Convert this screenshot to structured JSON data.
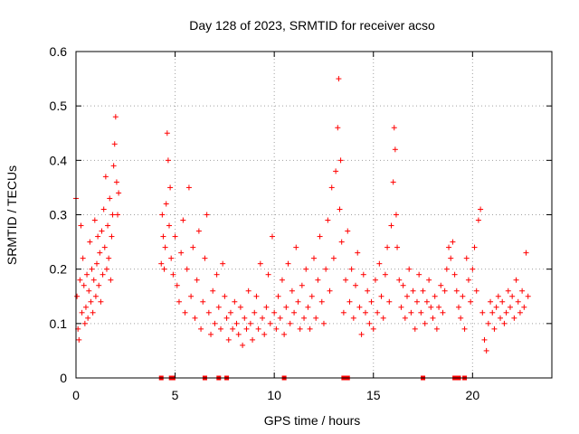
{
  "colors": {
    "marker": "#ff0000",
    "axis": "#000000",
    "grid": "#a0a0a0"
  },
  "chart_data": {
    "type": "scatter",
    "title": "Day 128 of 2023, SRMTID for receiver acso",
    "xlabel": "GPS time / hours",
    "ylabel": "SRMTID / TECUs",
    "xlim": [
      0,
      24
    ],
    "ylim": [
      0,
      0.6
    ],
    "xticks": [
      0,
      5,
      10,
      15,
      20
    ],
    "xtick_labels": [
      "0",
      "5",
      "10",
      "15",
      "20"
    ],
    "yticks": [
      0,
      0.1,
      0.2,
      0.3,
      0.4,
      0.5,
      0.6
    ],
    "ytick_labels": [
      "0",
      "0.1",
      "0.2",
      "0.3",
      "0.4",
      "0.5",
      "0.6"
    ],
    "grid": true,
    "marker": "+",
    "series": [
      {
        "name": "SRMTID",
        "points": [
          [
            0.0,
            0.33
          ],
          [
            0.05,
            0.15
          ],
          [
            0.1,
            0.09
          ],
          [
            0.15,
            0.07
          ],
          [
            0.2,
            0.18
          ],
          [
            0.25,
            0.28
          ],
          [
            0.3,
            0.12
          ],
          [
            0.35,
            0.22
          ],
          [
            0.4,
            0.17
          ],
          [
            0.45,
            0.1
          ],
          [
            0.5,
            0.13
          ],
          [
            0.55,
            0.19
          ],
          [
            0.6,
            0.11
          ],
          [
            0.65,
            0.16
          ],
          [
            0.7,
            0.25
          ],
          [
            0.75,
            0.14
          ],
          [
            0.8,
            0.2
          ],
          [
            0.85,
            0.12
          ],
          [
            0.9,
            0.18
          ],
          [
            0.95,
            0.29
          ],
          [
            1.0,
            0.15
          ],
          [
            1.05,
            0.21
          ],
          [
            1.1,
            0.26
          ],
          [
            1.15,
            0.17
          ],
          [
            1.2,
            0.23
          ],
          [
            1.25,
            0.14
          ],
          [
            1.3,
            0.27
          ],
          [
            1.35,
            0.19
          ],
          [
            1.4,
            0.31
          ],
          [
            1.45,
            0.24
          ],
          [
            1.5,
            0.37
          ],
          [
            1.55,
            0.2
          ],
          [
            1.6,
            0.28
          ],
          [
            1.65,
            0.22
          ],
          [
            1.7,
            0.33
          ],
          [
            1.75,
            0.18
          ],
          [
            1.8,
            0.26
          ],
          [
            1.85,
            0.3
          ],
          [
            1.9,
            0.39
          ],
          [
            1.95,
            0.43
          ],
          [
            2.0,
            0.48
          ],
          [
            2.05,
            0.36
          ],
          [
            2.1,
            0.3
          ],
          [
            2.15,
            0.34
          ],
          [
            4.3,
            0.21
          ],
          [
            4.35,
            0.3
          ],
          [
            4.4,
            0.26
          ],
          [
            4.45,
            0.2
          ],
          [
            4.5,
            0.24
          ],
          [
            4.55,
            0.32
          ],
          [
            4.6,
            0.45
          ],
          [
            4.65,
            0.4
          ],
          [
            4.7,
            0.28
          ],
          [
            4.75,
            0.35
          ],
          [
            4.8,
            0.22
          ],
          [
            4.9,
            0.19
          ],
          [
            5.0,
            0.26
          ],
          [
            5.1,
            0.17
          ],
          [
            5.2,
            0.14
          ],
          [
            5.3,
            0.23
          ],
          [
            5.4,
            0.29
          ],
          [
            5.5,
            0.12
          ],
          [
            5.6,
            0.2
          ],
          [
            5.7,
            0.35
          ],
          [
            5.8,
            0.15
          ],
          [
            5.9,
            0.24
          ],
          [
            6.0,
            0.11
          ],
          [
            6.1,
            0.18
          ],
          [
            6.2,
            0.27
          ],
          [
            6.3,
            0.09
          ],
          [
            6.4,
            0.14
          ],
          [
            6.5,
            0.22
          ],
          [
            6.6,
            0.3
          ],
          [
            6.7,
            0.12
          ],
          [
            6.8,
            0.08
          ],
          [
            6.9,
            0.16
          ],
          [
            7.0,
            0.1
          ],
          [
            7.1,
            0.19
          ],
          [
            7.2,
            0.13
          ],
          [
            7.3,
            0.09
          ],
          [
            7.4,
            0.21
          ],
          [
            7.5,
            0.15
          ],
          [
            7.6,
            0.11
          ],
          [
            7.7,
            0.07
          ],
          [
            7.8,
            0.12
          ],
          [
            7.9,
            0.09
          ],
          [
            8.0,
            0.14
          ],
          [
            8.1,
            0.1
          ],
          [
            8.2,
            0.08
          ],
          [
            8.3,
            0.13
          ],
          [
            8.4,
            0.06
          ],
          [
            8.5,
            0.11
          ],
          [
            8.6,
            0.09
          ],
          [
            8.7,
            0.16
          ],
          [
            8.8,
            0.1
          ],
          [
            8.9,
            0.07
          ],
          [
            9.0,
            0.12
          ],
          [
            9.1,
            0.15
          ],
          [
            9.2,
            0.09
          ],
          [
            9.3,
            0.21
          ],
          [
            9.4,
            0.11
          ],
          [
            9.5,
            0.08
          ],
          [
            9.6,
            0.13
          ],
          [
            9.7,
            0.19
          ],
          [
            9.8,
            0.1
          ],
          [
            9.9,
            0.26
          ],
          [
            10.0,
            0.12
          ],
          [
            10.1,
            0.09
          ],
          [
            10.2,
            0.15
          ],
          [
            10.3,
            0.11
          ],
          [
            10.4,
            0.18
          ],
          [
            10.5,
            0.08
          ],
          [
            10.6,
            0.13
          ],
          [
            10.7,
            0.21
          ],
          [
            10.8,
            0.1
          ],
          [
            10.9,
            0.16
          ],
          [
            11.0,
            0.12
          ],
          [
            11.1,
            0.24
          ],
          [
            11.2,
            0.14
          ],
          [
            11.3,
            0.09
          ],
          [
            11.4,
            0.17
          ],
          [
            11.5,
            0.11
          ],
          [
            11.6,
            0.2
          ],
          [
            11.7,
            0.13
          ],
          [
            11.8,
            0.09
          ],
          [
            11.9,
            0.15
          ],
          [
            12.0,
            0.22
          ],
          [
            12.1,
            0.11
          ],
          [
            12.2,
            0.18
          ],
          [
            12.3,
            0.26
          ],
          [
            12.4,
            0.14
          ],
          [
            12.5,
            0.1
          ],
          [
            12.6,
            0.2
          ],
          [
            12.7,
            0.29
          ],
          [
            12.8,
            0.16
          ],
          [
            12.9,
            0.35
          ],
          [
            13.0,
            0.22
          ],
          [
            13.1,
            0.38
          ],
          [
            13.2,
            0.46
          ],
          [
            13.25,
            0.55
          ],
          [
            13.3,
            0.31
          ],
          [
            13.35,
            0.4
          ],
          [
            13.4,
            0.25
          ],
          [
            13.5,
            0.12
          ],
          [
            13.6,
            0.18
          ],
          [
            13.7,
            0.27
          ],
          [
            13.8,
            0.14
          ],
          [
            13.9,
            0.2
          ],
          [
            14.0,
            0.11
          ],
          [
            14.1,
            0.17
          ],
          [
            14.2,
            0.23
          ],
          [
            14.3,
            0.13
          ],
          [
            14.4,
            0.08
          ],
          [
            14.5,
            0.19
          ],
          [
            14.6,
            0.12
          ],
          [
            14.7,
            0.16
          ],
          [
            14.8,
            0.1
          ],
          [
            14.9,
            0.14
          ],
          [
            15.0,
            0.09
          ],
          [
            15.1,
            0.18
          ],
          [
            15.2,
            0.12
          ],
          [
            15.3,
            0.21
          ],
          [
            15.4,
            0.15
          ],
          [
            15.5,
            0.11
          ],
          [
            15.6,
            0.19
          ],
          [
            15.7,
            0.24
          ],
          [
            15.8,
            0.14
          ],
          [
            15.9,
            0.28
          ],
          [
            16.0,
            0.36
          ],
          [
            16.05,
            0.46
          ],
          [
            16.1,
            0.42
          ],
          [
            16.15,
            0.3
          ],
          [
            16.2,
            0.24
          ],
          [
            16.3,
            0.18
          ],
          [
            16.4,
            0.13
          ],
          [
            16.5,
            0.17
          ],
          [
            16.6,
            0.11
          ],
          [
            16.7,
            0.15
          ],
          [
            16.8,
            0.2
          ],
          [
            16.9,
            0.12
          ],
          [
            17.0,
            0.16
          ],
          [
            17.1,
            0.09
          ],
          [
            17.2,
            0.14
          ],
          [
            17.3,
            0.19
          ],
          [
            17.4,
            0.12
          ],
          [
            17.5,
            0.16
          ],
          [
            17.6,
            0.1
          ],
          [
            17.7,
            0.14
          ],
          [
            17.8,
            0.18
          ],
          [
            17.9,
            0.13
          ],
          [
            18.0,
            0.11
          ],
          [
            18.1,
            0.15
          ],
          [
            18.2,
            0.09
          ],
          [
            18.3,
            0.13
          ],
          [
            18.4,
            0.17
          ],
          [
            18.5,
            0.12
          ],
          [
            18.6,
            0.16
          ],
          [
            18.7,
            0.2
          ],
          [
            18.8,
            0.24
          ],
          [
            18.9,
            0.22
          ],
          [
            19.0,
            0.25
          ],
          [
            19.1,
            0.19
          ],
          [
            19.2,
            0.16
          ],
          [
            19.3,
            0.13
          ],
          [
            19.4,
            0.11
          ],
          [
            19.5,
            0.15
          ],
          [
            19.6,
            0.09
          ],
          [
            19.7,
            0.22
          ],
          [
            19.8,
            0.18
          ],
          [
            19.9,
            0.14
          ],
          [
            20.0,
            0.2
          ],
          [
            20.1,
            0.24
          ],
          [
            20.2,
            0.16
          ],
          [
            20.3,
            0.29
          ],
          [
            20.4,
            0.31
          ],
          [
            20.5,
            0.12
          ],
          [
            20.6,
            0.07
          ],
          [
            20.7,
            0.05
          ],
          [
            20.8,
            0.1
          ],
          [
            20.9,
            0.14
          ],
          [
            21.0,
            0.12
          ],
          [
            21.1,
            0.09
          ],
          [
            21.2,
            0.13
          ],
          [
            21.3,
            0.15
          ],
          [
            21.4,
            0.11
          ],
          [
            21.5,
            0.14
          ],
          [
            21.6,
            0.1
          ],
          [
            21.7,
            0.12
          ],
          [
            21.8,
            0.16
          ],
          [
            21.9,
            0.13
          ],
          [
            22.0,
            0.15
          ],
          [
            22.1,
            0.11
          ],
          [
            22.2,
            0.18
          ],
          [
            22.3,
            0.14
          ],
          [
            22.4,
            0.12
          ],
          [
            22.5,
            0.16
          ],
          [
            22.6,
            0.13
          ],
          [
            22.7,
            0.23
          ],
          [
            22.8,
            0.15
          ]
        ]
      },
      {
        "name": "zero-markers",
        "x": [
          4.3,
          4.8,
          4.9,
          6.5,
          7.2,
          7.6,
          10.5,
          13.5,
          13.7,
          17.5,
          19.1,
          19.3,
          19.6
        ]
      }
    ]
  }
}
